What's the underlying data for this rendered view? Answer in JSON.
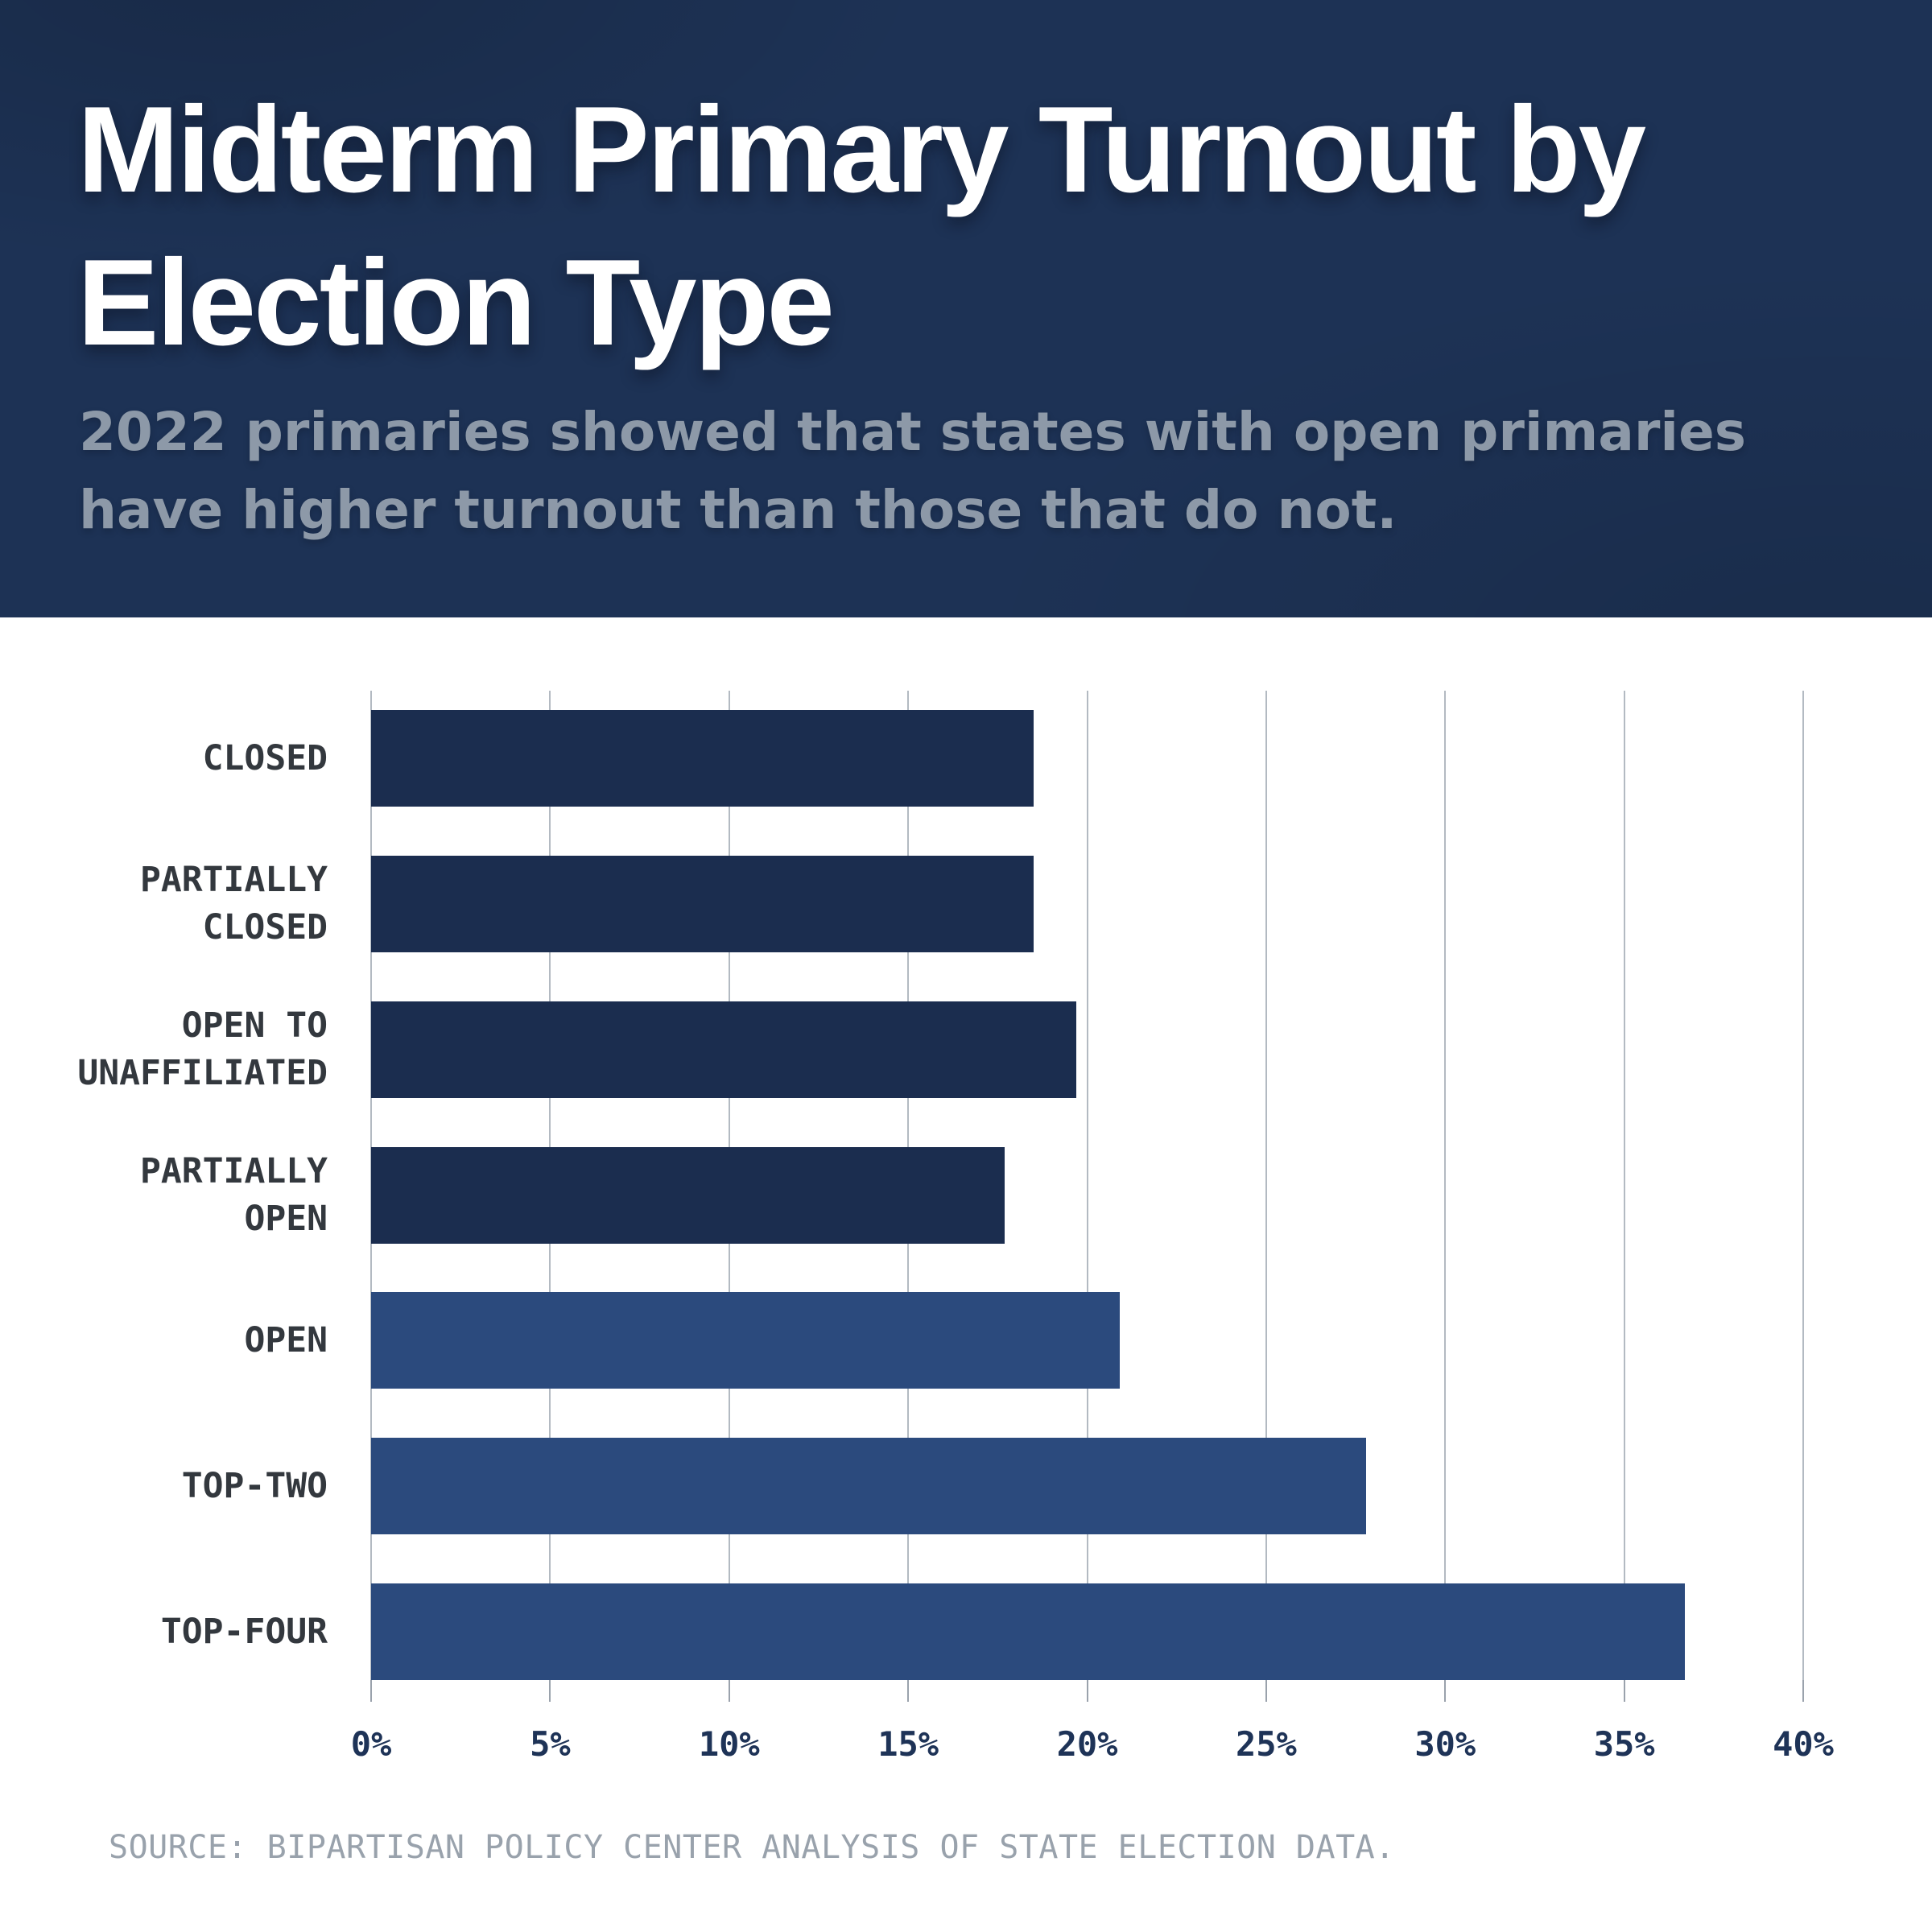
{
  "page": {
    "title": "Midterm Primary Turnout by Election Type",
    "subtitle": "2022 primaries showed that states with open primaries have higher turnout than those that do not.",
    "source": "SOURCE: BIPARTISAN POLICY CENTER ANALYSIS OF STATE ELECTION DATA."
  },
  "chart_data": {
    "type": "bar",
    "orientation": "horizontal",
    "title": "Midterm Primary Turnout by Election Type",
    "subtitle": "2022 primaries showed that states with open primaries have higher turnout than those that do not.",
    "source": "SOURCE: BIPARTISAN POLICY CENTER ANALYSIS OF STATE ELECTION DATA.",
    "categories": [
      "CLOSED",
      "PARTIALLY CLOSED",
      "OPEN TO UNAFFILIATED",
      "PARTIALLY OPEN",
      "OPEN",
      "TOP-TWO",
      "TOP-FOUR"
    ],
    "category_lines": [
      [
        "CLOSED"
      ],
      [
        "PARTIALLY",
        "CLOSED"
      ],
      [
        "OPEN TO",
        "UNAFFILIATED"
      ],
      [
        "PARTIALLY",
        "OPEN"
      ],
      [
        "OPEN"
      ],
      [
        "TOP-TWO"
      ],
      [
        "TOP-FOUR"
      ]
    ],
    "values": [
      18.5,
      18.5,
      19.7,
      17.7,
      20.9,
      27.8,
      36.7
    ],
    "unit": "%",
    "xlabel": "",
    "ylabel": "",
    "xlim": [
      0,
      40
    ],
    "x_tick_labels": [
      "0%",
      "5%",
      "10%",
      "15%",
      "20%",
      "25%",
      "30%",
      "35%",
      "40%"
    ],
    "x_tick_values": [
      0,
      5,
      10,
      15,
      20,
      25,
      30,
      35,
      40
    ],
    "grid": "vertical",
    "legend": "none",
    "bar_colors": [
      "#1b2d4f",
      "#1b2d4f",
      "#1b2d4f",
      "#1b2d4f",
      "#2b4a7d",
      "#2b4a7d",
      "#2b4a7d"
    ],
    "colors": {
      "closed_family_bar": "#1b2d4f",
      "open_family_bar": "#2b4a7d",
      "header_background": "#1d3255",
      "title_text": "#ffffff",
      "subtitle_text": "#8d99a8",
      "gridline": "#b3bac2",
      "axis_tick": "#9aa2ac",
      "x_tick_label_text": "#1e3357",
      "category_label_text": "#33383e",
      "source_text": "#99a2ac"
    }
  }
}
